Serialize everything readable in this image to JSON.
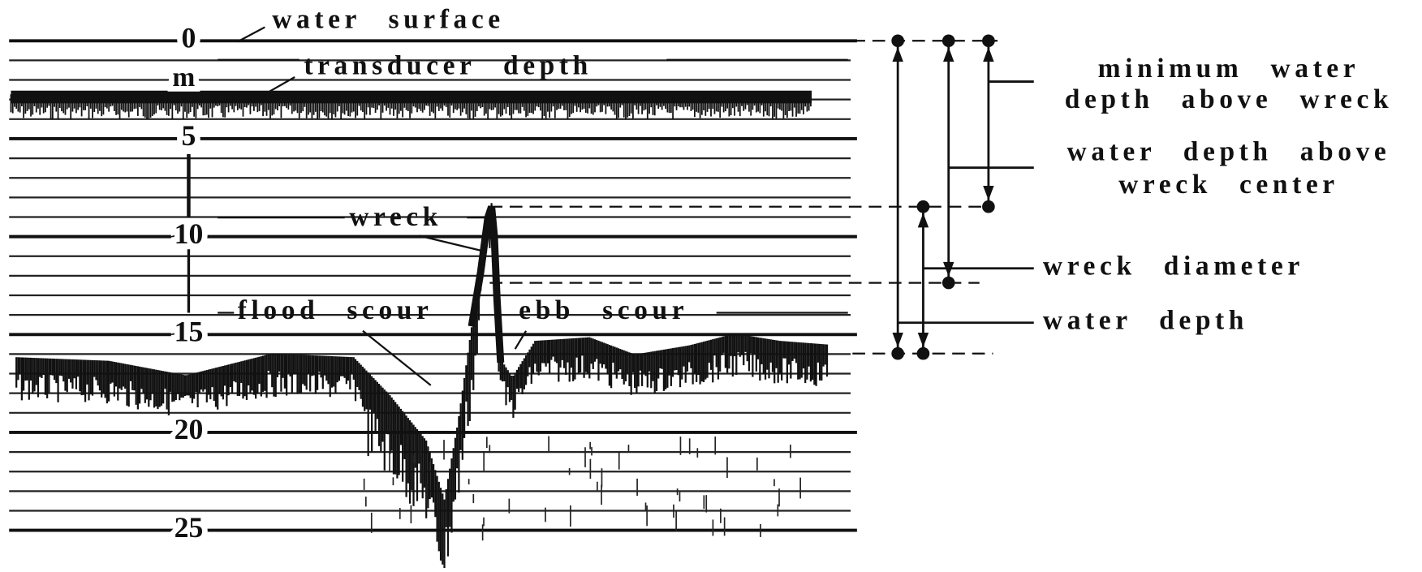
{
  "depth_scale": {
    "unit": "m",
    "ticks": [
      0,
      5,
      10,
      15,
      20,
      25
    ]
  },
  "annotations": {
    "water_surface": "water surface",
    "transducer_depth": "transducer depth",
    "wreck": "wreck",
    "flood_scour": "flood scour",
    "ebb_scour": "ebb scour"
  },
  "measures": {
    "minimum_water_depth_above_wreck": [
      "minimum water",
      "depth above wreck"
    ],
    "water_depth_above_wreck_center": [
      "water depth above",
      "wreck center"
    ],
    "wreck_diameter": [
      "wreck diameter"
    ],
    "water_depth": [
      "water depth"
    ]
  }
}
